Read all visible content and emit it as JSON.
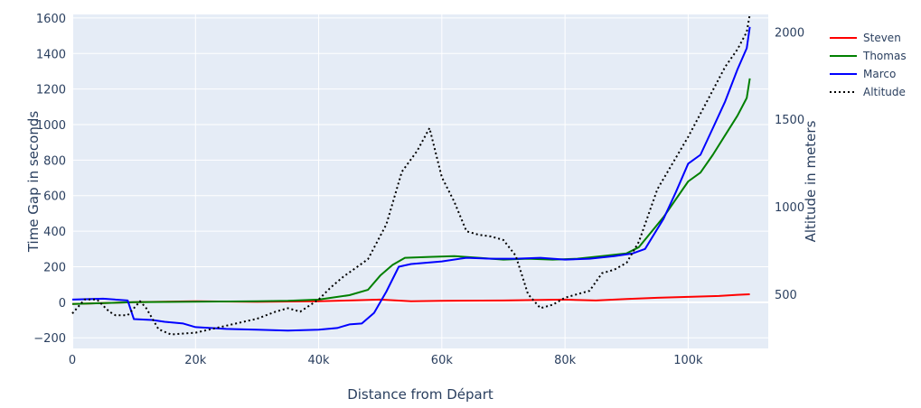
{
  "chart_data": {
    "type": "line",
    "xlabel": "Distance from Départ",
    "ylabel": "Time Gap in seconds",
    "y2label": "Altitude in meters",
    "xlim": [
      0,
      113000
    ],
    "ylim": [
      -260,
      1620
    ],
    "y2lim": [
      190,
      2100
    ],
    "x_ticks": [
      0,
      20000,
      40000,
      60000,
      80000,
      100000
    ],
    "x_tick_labels": [
      "0",
      "20k",
      "40k",
      "60k",
      "80k",
      "100k"
    ],
    "y_ticks": [
      -200,
      0,
      200,
      400,
      600,
      800,
      1000,
      1200,
      1400,
      1600
    ],
    "y_tick_labels": [
      "−200",
      "0",
      "200",
      "400",
      "600",
      "800",
      "1000",
      "1200",
      "1400",
      "1600"
    ],
    "y2_ticks": [
      500,
      1000,
      1500,
      2000
    ],
    "y2_tick_labels": [
      "500",
      "1000",
      "1500",
      "2000"
    ],
    "grid": true,
    "legend_position": "top-right",
    "colors": {
      "plot_bg": "#e5ecf6",
      "grid": "#ffffff",
      "text": "#2a3f5f",
      "steven": "#ff0000",
      "thomas": "#008000",
      "marco": "#0000ff",
      "altitude": "#000000"
    },
    "series": [
      {
        "name": "Steven",
        "axis": "y",
        "color": "#ff0000",
        "dash": "solid",
        "x": [
          0,
          10000,
          20000,
          30000,
          40000,
          45000,
          50000,
          55000,
          60000,
          70000,
          80000,
          85000,
          90000,
          95000,
          100000,
          105000,
          108000,
          110000
        ],
        "y": [
          -10,
          0,
          5,
          2,
          5,
          10,
          15,
          5,
          8,
          10,
          15,
          10,
          18,
          25,
          30,
          35,
          42,
          45
        ]
      },
      {
        "name": "Thomas",
        "axis": "y",
        "color": "#008000",
        "dash": "solid",
        "x": [
          0,
          10000,
          20000,
          30000,
          35000,
          40000,
          45000,
          48000,
          50000,
          52000,
          54000,
          58000,
          62000,
          66000,
          70000,
          74000,
          78000,
          82000,
          86000,
          90000,
          92000,
          96000,
          100000,
          102000,
          104000,
          106000,
          108000,
          109500,
          110000
        ],
        "y": [
          -10,
          0,
          3,
          5,
          8,
          15,
          40,
          70,
          150,
          210,
          250,
          255,
          260,
          250,
          240,
          245,
          240,
          245,
          260,
          275,
          310,
          480,
          680,
          730,
          830,
          940,
          1050,
          1150,
          1260
        ]
      },
      {
        "name": "Marco",
        "axis": "y",
        "color": "#0000ff",
        "dash": "solid",
        "x": [
          0,
          5000,
          9000,
          10000,
          13000,
          15000,
          18000,
          20000,
          25000,
          30000,
          35000,
          40000,
          43000,
          45000,
          47000,
          49000,
          51000,
          53000,
          55000,
          60000,
          64000,
          68000,
          72000,
          76000,
          80000,
          84000,
          88000,
          91000,
          93000,
          96000,
          98000,
          100000,
          102000,
          104000,
          106000,
          108000,
          109500,
          110000
        ],
        "y": [
          15,
          20,
          10,
          -95,
          -100,
          -110,
          -120,
          -140,
          -150,
          -155,
          -160,
          -155,
          -145,
          -125,
          -120,
          -60,
          60,
          200,
          215,
          230,
          250,
          245,
          245,
          250,
          240,
          245,
          260,
          275,
          300,
          470,
          620,
          780,
          830,
          980,
          1130,
          1310,
          1430,
          1550
        ]
      },
      {
        "name": "Altitude",
        "axis": "y2",
        "color": "#000000",
        "dash": "dot",
        "x": [
          0,
          2000,
          4000,
          6000,
          7000,
          9000,
          11000,
          12000,
          14000,
          16000,
          20000,
          25000,
          30000,
          33000,
          35000,
          37000,
          40000,
          42000,
          44000,
          48000,
          51000,
          53500,
          56000,
          58000,
          60000,
          62000,
          64000,
          66000,
          68000,
          70000,
          72000,
          74000,
          76000,
          78000,
          80000,
          82000,
          84000,
          86000,
          88000,
          90000,
          92000,
          95000,
          100000,
          103000,
          106000,
          108000,
          109500,
          110000
        ],
        "y": [
          390,
          470,
          470,
          400,
          380,
          380,
          460,
          420,
          300,
          270,
          280,
          320,
          360,
          400,
          420,
          400,
          470,
          540,
          600,
          700,
          900,
          1200,
          1320,
          1450,
          1170,
          1030,
          860,
          840,
          830,
          810,
          720,
          500,
          420,
          440,
          480,
          500,
          520,
          620,
          640,
          680,
          800,
          1100,
          1400,
          1600,
          1800,
          1900,
          2000,
          2100
        ]
      }
    ]
  }
}
